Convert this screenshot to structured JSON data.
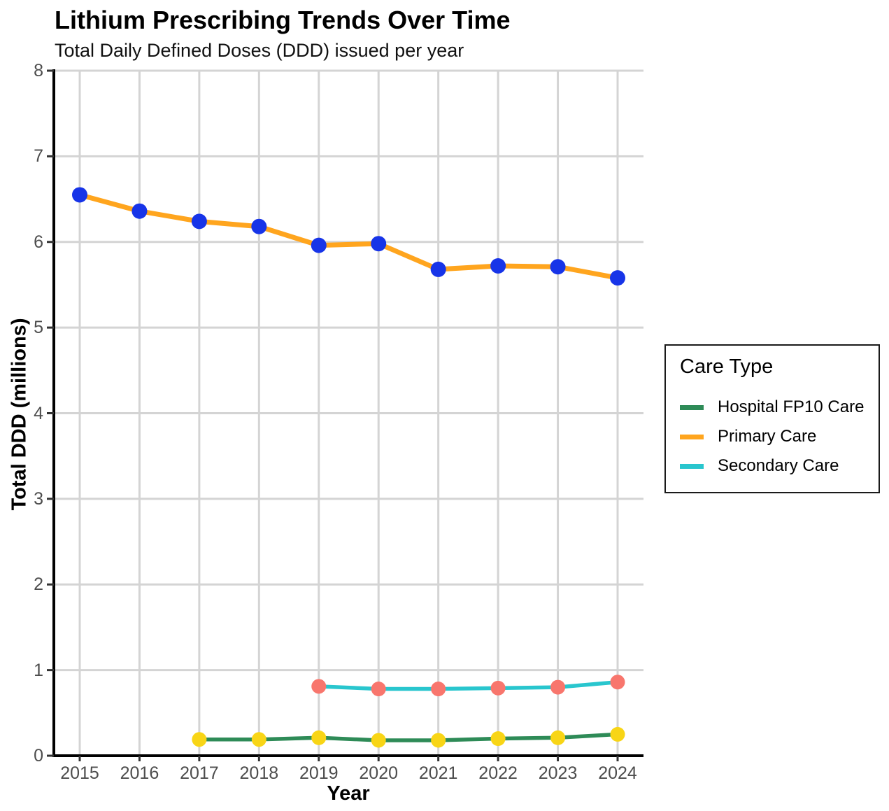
{
  "chart_data": {
    "type": "line",
    "title": "Lithium Prescribing Trends Over Time",
    "subtitle": "Total Daily Defined Doses (DDD) issued per year",
    "xlabel": "Year",
    "ylabel": "Total DDD (millions)",
    "x": [
      2015,
      2016,
      2017,
      2018,
      2019,
      2020,
      2021,
      2022,
      2023,
      2024
    ],
    "ylim": [
      0,
      8
    ],
    "yticks": [
      0,
      1,
      2,
      3,
      4,
      5,
      6,
      7,
      8
    ],
    "grid": "major-only",
    "legend": {
      "title": "Care Type",
      "position": "right"
    },
    "colors": {
      "grid": "#d4d4d4",
      "axis": "#000000",
      "tick": "#333333",
      "tick_label": "#4d4d4d"
    },
    "series": [
      {
        "id": "hospital-fp10-care",
        "name": "Hospital FP10 Care",
        "line_color": "#2e8b57",
        "point_color": "#f8d516",
        "line_width": 5.5,
        "point_radius": 10.5,
        "x": [
          2017,
          2018,
          2019,
          2020,
          2021,
          2022,
          2023,
          2024
        ],
        "values": [
          0.19,
          0.19,
          0.21,
          0.18,
          0.18,
          0.2,
          0.21,
          0.25
        ]
      },
      {
        "id": "primary-care",
        "name": "Primary Care",
        "line_color": "#ffa51e",
        "point_color": "#1734e8",
        "line_width": 7,
        "point_radius": 11,
        "x": [
          2015,
          2016,
          2017,
          2018,
          2019,
          2020,
          2021,
          2022,
          2023,
          2024
        ],
        "values": [
          6.55,
          6.36,
          6.24,
          6.18,
          5.96,
          5.98,
          5.68,
          5.72,
          5.71,
          5.58
        ]
      },
      {
        "id": "secondary-care",
        "name": "Secondary Care",
        "line_color": "#29c6ce",
        "point_color": "#f8766d",
        "line_width": 5.5,
        "point_radius": 10.5,
        "x": [
          2019,
          2020,
          2021,
          2022,
          2023,
          2024
        ],
        "values": [
          0.81,
          0.78,
          0.78,
          0.79,
          0.8,
          0.86
        ]
      }
    ]
  }
}
